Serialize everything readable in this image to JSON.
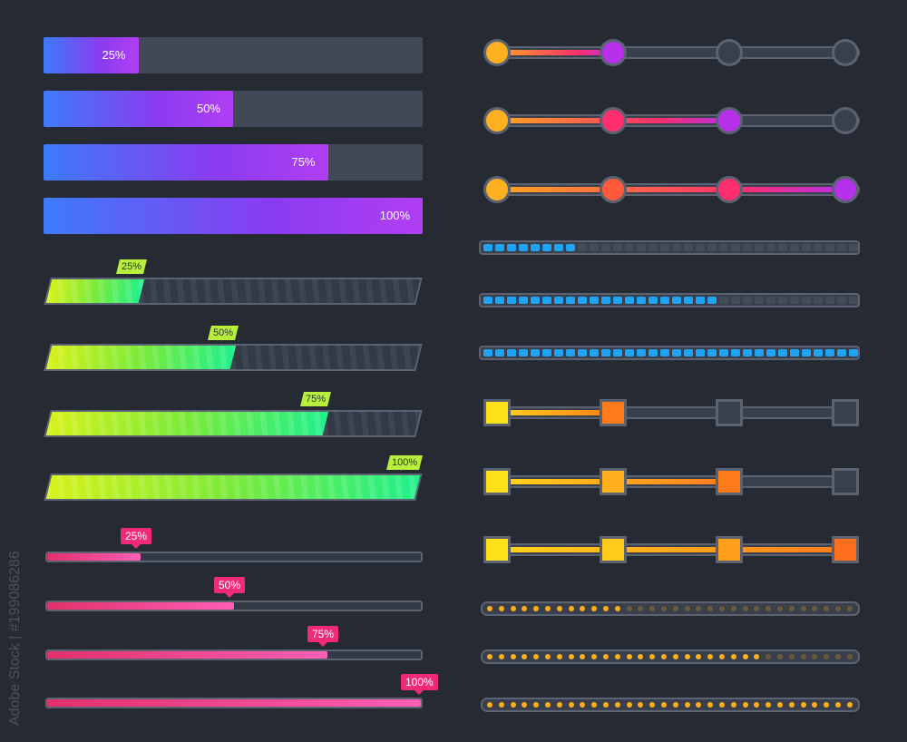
{
  "gradient_bars": [
    {
      "label": "25%",
      "value": 0.25
    },
    {
      "label": "50%",
      "value": 0.5
    },
    {
      "label": "75%",
      "value": 0.75
    },
    {
      "label": "100%",
      "value": 1.0
    }
  ],
  "green_bars": [
    {
      "label": "25%",
      "value": 0.25
    },
    {
      "label": "50%",
      "value": 0.5
    },
    {
      "label": "75%",
      "value": 0.75
    },
    {
      "label": "100%",
      "value": 1.0
    }
  ],
  "pink_bars": [
    {
      "label": "25%",
      "value": 0.25
    },
    {
      "label": "50%",
      "value": 0.5
    },
    {
      "label": "75%",
      "value": 0.75
    },
    {
      "label": "100%",
      "value": 1.0
    }
  ],
  "circle_steppers": [
    {
      "active_steps": 2
    },
    {
      "active_steps": 3
    },
    {
      "active_steps": 4
    }
  ],
  "block_bars": [
    {
      "value": 0.25
    },
    {
      "value": 0.625
    },
    {
      "value": 1.0
    }
  ],
  "square_steppers": [
    {
      "active_steps": 2
    },
    {
      "active_steps": 3
    },
    {
      "active_steps": 4
    }
  ],
  "dot_bars": [
    {
      "value": 0.375
    },
    {
      "value": 0.75
    },
    {
      "value": 1.0
    }
  ],
  "watermark": "Adobe Stock | #199086286",
  "colors": {
    "background": "#252a33",
    "track": "#3a404b",
    "border": "#5b6372"
  }
}
